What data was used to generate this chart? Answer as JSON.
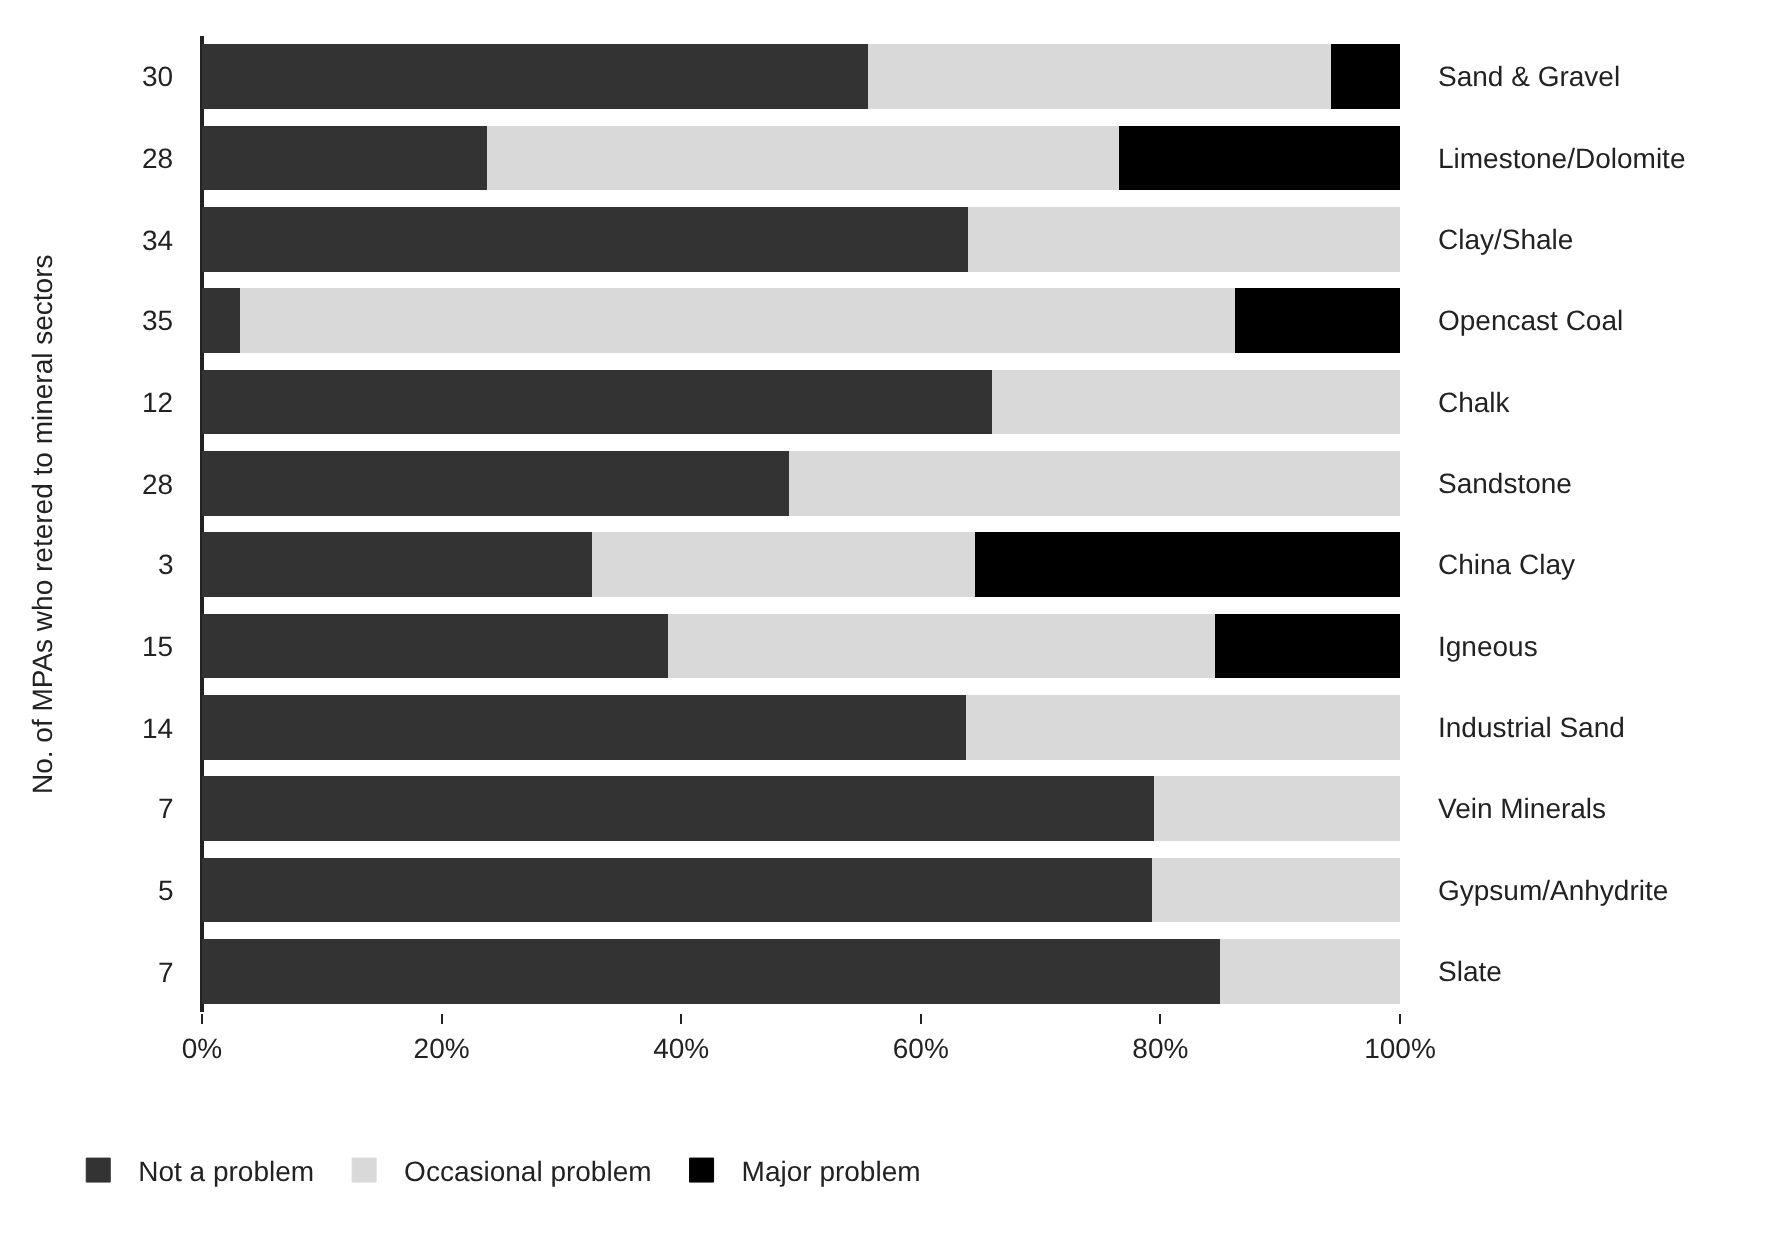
{
  "chart_data": {
    "type": "bar",
    "orientation": "horizontal",
    "stacked": true,
    "ylabel": "No. of MPAs who retered to mineral sectors",
    "categories": [
      "Sand & Gravel",
      "Limestone/Dolomite",
      "Clay/Shale",
      "Opencast Coal",
      "Chalk",
      "Sandstone",
      "China Clay",
      "Igneous",
      "Industrial Sand",
      "Vein Minerals",
      "Gypsum/Anhydrite",
      "Slate"
    ],
    "series": [
      {
        "name": "Not a problem",
        "color": "#333333",
        "values": [
          55.6,
          23.8,
          64,
          3.2,
          66,
          49,
          32.6,
          38.9,
          63.8,
          79.5,
          79.3,
          85
        ]
      },
      {
        "name": "Occasional problem",
        "color": "#d9d9d9",
        "values": [
          38.7,
          52.8,
          36,
          83.1,
          34,
          51,
          32,
          45.7,
          36.2,
          20.5,
          20.7,
          15
        ]
      },
      {
        "name": "Major problem",
        "color": "#000000",
        "values": [
          5.7,
          23.4,
          null,
          13.7,
          null,
          null,
          35.4,
          15.4,
          null,
          null,
          null,
          null
        ]
      }
    ],
    "xlim": [
      0,
      100
    ],
    "xticks": [
      {
        "value": 0,
        "label": "0%"
      },
      {
        "value": 20,
        "label": "20%"
      },
      {
        "value": 40,
        "label": "40%"
      },
      {
        "value": 60,
        "label": "60%"
      },
      {
        "value": 80,
        "label": "80%"
      },
      {
        "value": 100,
        "label": "100%"
      }
    ],
    "annotations": [
      "30",
      "28",
      "34",
      "35",
      "12",
      "28",
      "3",
      "15",
      "14",
      "7",
      "5",
      "7"
    ],
    "legend": "bottom"
  }
}
